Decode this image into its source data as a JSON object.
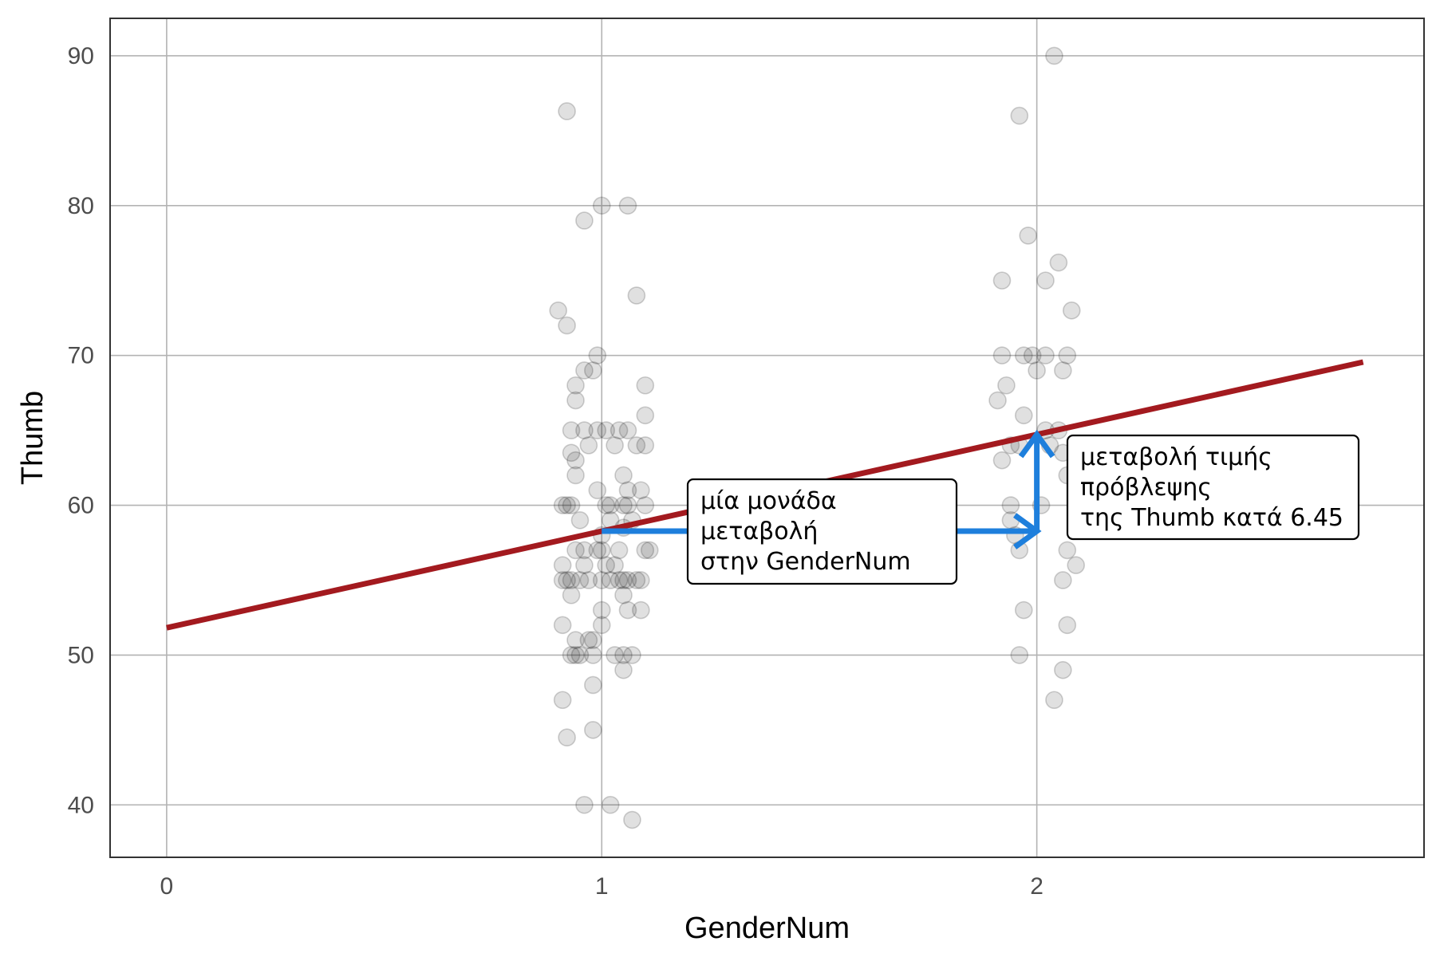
{
  "chart_data": {
    "type": "scatter",
    "title": "",
    "xlabel": "GenderNum",
    "ylabel": "Thumb",
    "xlim": [
      -0.13,
      2.89
    ],
    "ylim": [
      36.5,
      92.5
    ],
    "x_ticks": [
      0,
      1,
      2
    ],
    "y_ticks": [
      40,
      50,
      60,
      70,
      80,
      90
    ],
    "grid": true,
    "legend": "none",
    "colors": {
      "points": "#000000",
      "regression_line": "#a31a1f",
      "arrow": "#1e7fdc",
      "grid": "#b3b3b3",
      "panel_border": "#333333"
    },
    "regression": {
      "intercept": 51.82,
      "slope": 6.45,
      "x_range": [
        0,
        2.75
      ]
    },
    "points": [
      {
        "x": 0.92,
        "y": 86.3
      },
      {
        "x": 0.96,
        "y": 79
      },
      {
        "x": 1.0,
        "y": 80
      },
      {
        "x": 1.06,
        "y": 80
      },
      {
        "x": 1.08,
        "y": 74
      },
      {
        "x": 0.9,
        "y": 73
      },
      {
        "x": 0.92,
        "y": 72
      },
      {
        "x": 0.99,
        "y": 70
      },
      {
        "x": 0.96,
        "y": 69
      },
      {
        "x": 0.98,
        "y": 69
      },
      {
        "x": 0.94,
        "y": 68
      },
      {
        "x": 1.1,
        "y": 68
      },
      {
        "x": 0.94,
        "y": 67
      },
      {
        "x": 1.1,
        "y": 66
      },
      {
        "x": 0.93,
        "y": 65
      },
      {
        "x": 0.96,
        "y": 65
      },
      {
        "x": 0.99,
        "y": 65
      },
      {
        "x": 1.01,
        "y": 65
      },
      {
        "x": 1.04,
        "y": 65
      },
      {
        "x": 1.06,
        "y": 65
      },
      {
        "x": 0.97,
        "y": 64
      },
      {
        "x": 1.03,
        "y": 64
      },
      {
        "x": 1.08,
        "y": 64
      },
      {
        "x": 1.1,
        "y": 64
      },
      {
        "x": 0.93,
        "y": 63.5
      },
      {
        "x": 0.94,
        "y": 63
      },
      {
        "x": 0.94,
        "y": 62
      },
      {
        "x": 1.05,
        "y": 62
      },
      {
        "x": 1.06,
        "y": 61
      },
      {
        "x": 1.09,
        "y": 61
      },
      {
        "x": 0.99,
        "y": 61
      },
      {
        "x": 0.91,
        "y": 60
      },
      {
        "x": 0.92,
        "y": 60
      },
      {
        "x": 0.93,
        "y": 60
      },
      {
        "x": 1.01,
        "y": 60
      },
      {
        "x": 1.02,
        "y": 60
      },
      {
        "x": 1.05,
        "y": 60
      },
      {
        "x": 1.06,
        "y": 60
      },
      {
        "x": 1.1,
        "y": 60
      },
      {
        "x": 0.95,
        "y": 59
      },
      {
        "x": 1.02,
        "y": 59
      },
      {
        "x": 1.07,
        "y": 59
      },
      {
        "x": 1.05,
        "y": 58.5
      },
      {
        "x": 1.0,
        "y": 58
      },
      {
        "x": 0.94,
        "y": 57
      },
      {
        "x": 0.96,
        "y": 57
      },
      {
        "x": 0.99,
        "y": 57
      },
      {
        "x": 1.0,
        "y": 57
      },
      {
        "x": 1.04,
        "y": 57
      },
      {
        "x": 1.1,
        "y": 57
      },
      {
        "x": 1.11,
        "y": 57
      },
      {
        "x": 0.91,
        "y": 56
      },
      {
        "x": 0.96,
        "y": 56
      },
      {
        "x": 1.01,
        "y": 56
      },
      {
        "x": 1.03,
        "y": 56
      },
      {
        "x": 0.91,
        "y": 55
      },
      {
        "x": 0.92,
        "y": 55
      },
      {
        "x": 0.93,
        "y": 55
      },
      {
        "x": 0.95,
        "y": 55
      },
      {
        "x": 0.97,
        "y": 55
      },
      {
        "x": 1.0,
        "y": 55
      },
      {
        "x": 1.02,
        "y": 55
      },
      {
        "x": 1.04,
        "y": 55
      },
      {
        "x": 1.05,
        "y": 55
      },
      {
        "x": 1.06,
        "y": 55
      },
      {
        "x": 1.08,
        "y": 55
      },
      {
        "x": 1.09,
        "y": 55
      },
      {
        "x": 0.93,
        "y": 54
      },
      {
        "x": 1.05,
        "y": 54
      },
      {
        "x": 1.0,
        "y": 53
      },
      {
        "x": 1.06,
        "y": 53
      },
      {
        "x": 1.09,
        "y": 53
      },
      {
        "x": 0.91,
        "y": 52
      },
      {
        "x": 1.0,
        "y": 52
      },
      {
        "x": 0.94,
        "y": 51
      },
      {
        "x": 0.97,
        "y": 51
      },
      {
        "x": 0.98,
        "y": 51
      },
      {
        "x": 0.93,
        "y": 50
      },
      {
        "x": 0.94,
        "y": 50
      },
      {
        "x": 0.95,
        "y": 50
      },
      {
        "x": 0.98,
        "y": 50
      },
      {
        "x": 1.03,
        "y": 50
      },
      {
        "x": 1.05,
        "y": 50
      },
      {
        "x": 1.07,
        "y": 50
      },
      {
        "x": 1.05,
        "y": 49
      },
      {
        "x": 0.98,
        "y": 48
      },
      {
        "x": 0.91,
        "y": 47
      },
      {
        "x": 0.98,
        "y": 45
      },
      {
        "x": 0.92,
        "y": 44.5
      },
      {
        "x": 0.96,
        "y": 40
      },
      {
        "x": 1.02,
        "y": 40
      },
      {
        "x": 1.07,
        "y": 39
      },
      {
        "x": 2.04,
        "y": 90
      },
      {
        "x": 1.96,
        "y": 86
      },
      {
        "x": 1.98,
        "y": 78
      },
      {
        "x": 2.05,
        "y": 76.2
      },
      {
        "x": 1.92,
        "y": 75
      },
      {
        "x": 2.02,
        "y": 75
      },
      {
        "x": 2.08,
        "y": 73
      },
      {
        "x": 1.92,
        "y": 70
      },
      {
        "x": 1.97,
        "y": 70
      },
      {
        "x": 1.99,
        "y": 70
      },
      {
        "x": 2.02,
        "y": 70
      },
      {
        "x": 2.07,
        "y": 70
      },
      {
        "x": 2.0,
        "y": 69
      },
      {
        "x": 2.06,
        "y": 69
      },
      {
        "x": 1.93,
        "y": 68
      },
      {
        "x": 1.91,
        "y": 67
      },
      {
        "x": 1.97,
        "y": 66
      },
      {
        "x": 2.02,
        "y": 65
      },
      {
        "x": 2.05,
        "y": 65
      },
      {
        "x": 1.94,
        "y": 64
      },
      {
        "x": 1.96,
        "y": 64
      },
      {
        "x": 2.03,
        "y": 64
      },
      {
        "x": 1.92,
        "y": 63
      },
      {
        "x": 2.06,
        "y": 63.5
      },
      {
        "x": 2.07,
        "y": 62
      },
      {
        "x": 1.94,
        "y": 60
      },
      {
        "x": 2.01,
        "y": 60
      },
      {
        "x": 1.94,
        "y": 59
      },
      {
        "x": 1.95,
        "y": 58
      },
      {
        "x": 1.96,
        "y": 57
      },
      {
        "x": 2.07,
        "y": 57
      },
      {
        "x": 2.09,
        "y": 56
      },
      {
        "x": 2.06,
        "y": 55
      },
      {
        "x": 1.97,
        "y": 53
      },
      {
        "x": 2.07,
        "y": 52
      },
      {
        "x": 1.96,
        "y": 50
      },
      {
        "x": 2.06,
        "y": 49
      },
      {
        "x": 2.04,
        "y": 47
      }
    ],
    "annotations": [
      {
        "name": "unit-change",
        "lines": [
          "μία μονάδα",
          "μεταβολή",
          "στην GenderNum"
        ],
        "arrow": {
          "from": [
            1,
            58.27
          ],
          "to": [
            2,
            58.27
          ]
        }
      },
      {
        "name": "prediction-change",
        "lines": [
          "μεταβολή τιμής",
          "πρόβλεψης",
          "της Thumb κατά 6.45"
        ],
        "arrow": {
          "from": [
            2,
            58.27
          ],
          "to": [
            2,
            64.72
          ]
        }
      }
    ]
  }
}
